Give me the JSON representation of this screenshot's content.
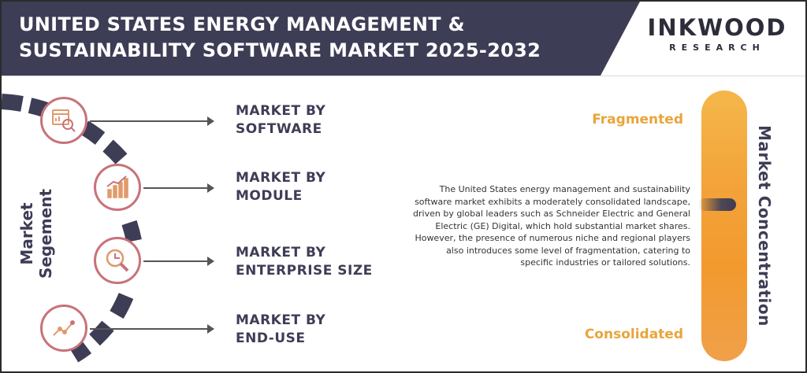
{
  "header": {
    "title_line1": "UNITED STATES ENERGY MANAGEMENT &",
    "title_line2": "SUSTAINABILITY SOFTWARE MARKET 2025-2032",
    "logo_main": "INKWOOD",
    "logo_sub": "RESEARCH"
  },
  "segmentation": {
    "label": "Market Segement",
    "items": [
      {
        "line1": "MARKET BY",
        "line2": "SOFTWARE",
        "icon": "analytics-search-icon"
      },
      {
        "line1": "MARKET BY",
        "line2": "MODULE",
        "icon": "bar-chart-growth-icon"
      },
      {
        "line1": "MARKET BY",
        "line2": "ENTERPRISE SIZE",
        "icon": "magnifier-pie-icon"
      },
      {
        "line1": "MARKET BY",
        "line2": "END-USE",
        "icon": "line-trend-icon"
      }
    ]
  },
  "concentration": {
    "label": "Market Concentration",
    "top_label": "Fragmented",
    "bottom_label": "Consolidated",
    "description": "The United States energy management and sustainability software market exhibits a moderately consolidated landscape, driven by global leaders such as Schneider Electric and General Electric (GE) Digital, which hold substantial market shares. However, the presence of numerous niche and regional players also introduces some level of fragmentation, catering to specific industries or tailored solutions."
  },
  "colors": {
    "navy": "#3e3d56",
    "accent_rose": "#c8727a",
    "orange": "#f29a2e",
    "label_orange": "#e8a53a"
  }
}
